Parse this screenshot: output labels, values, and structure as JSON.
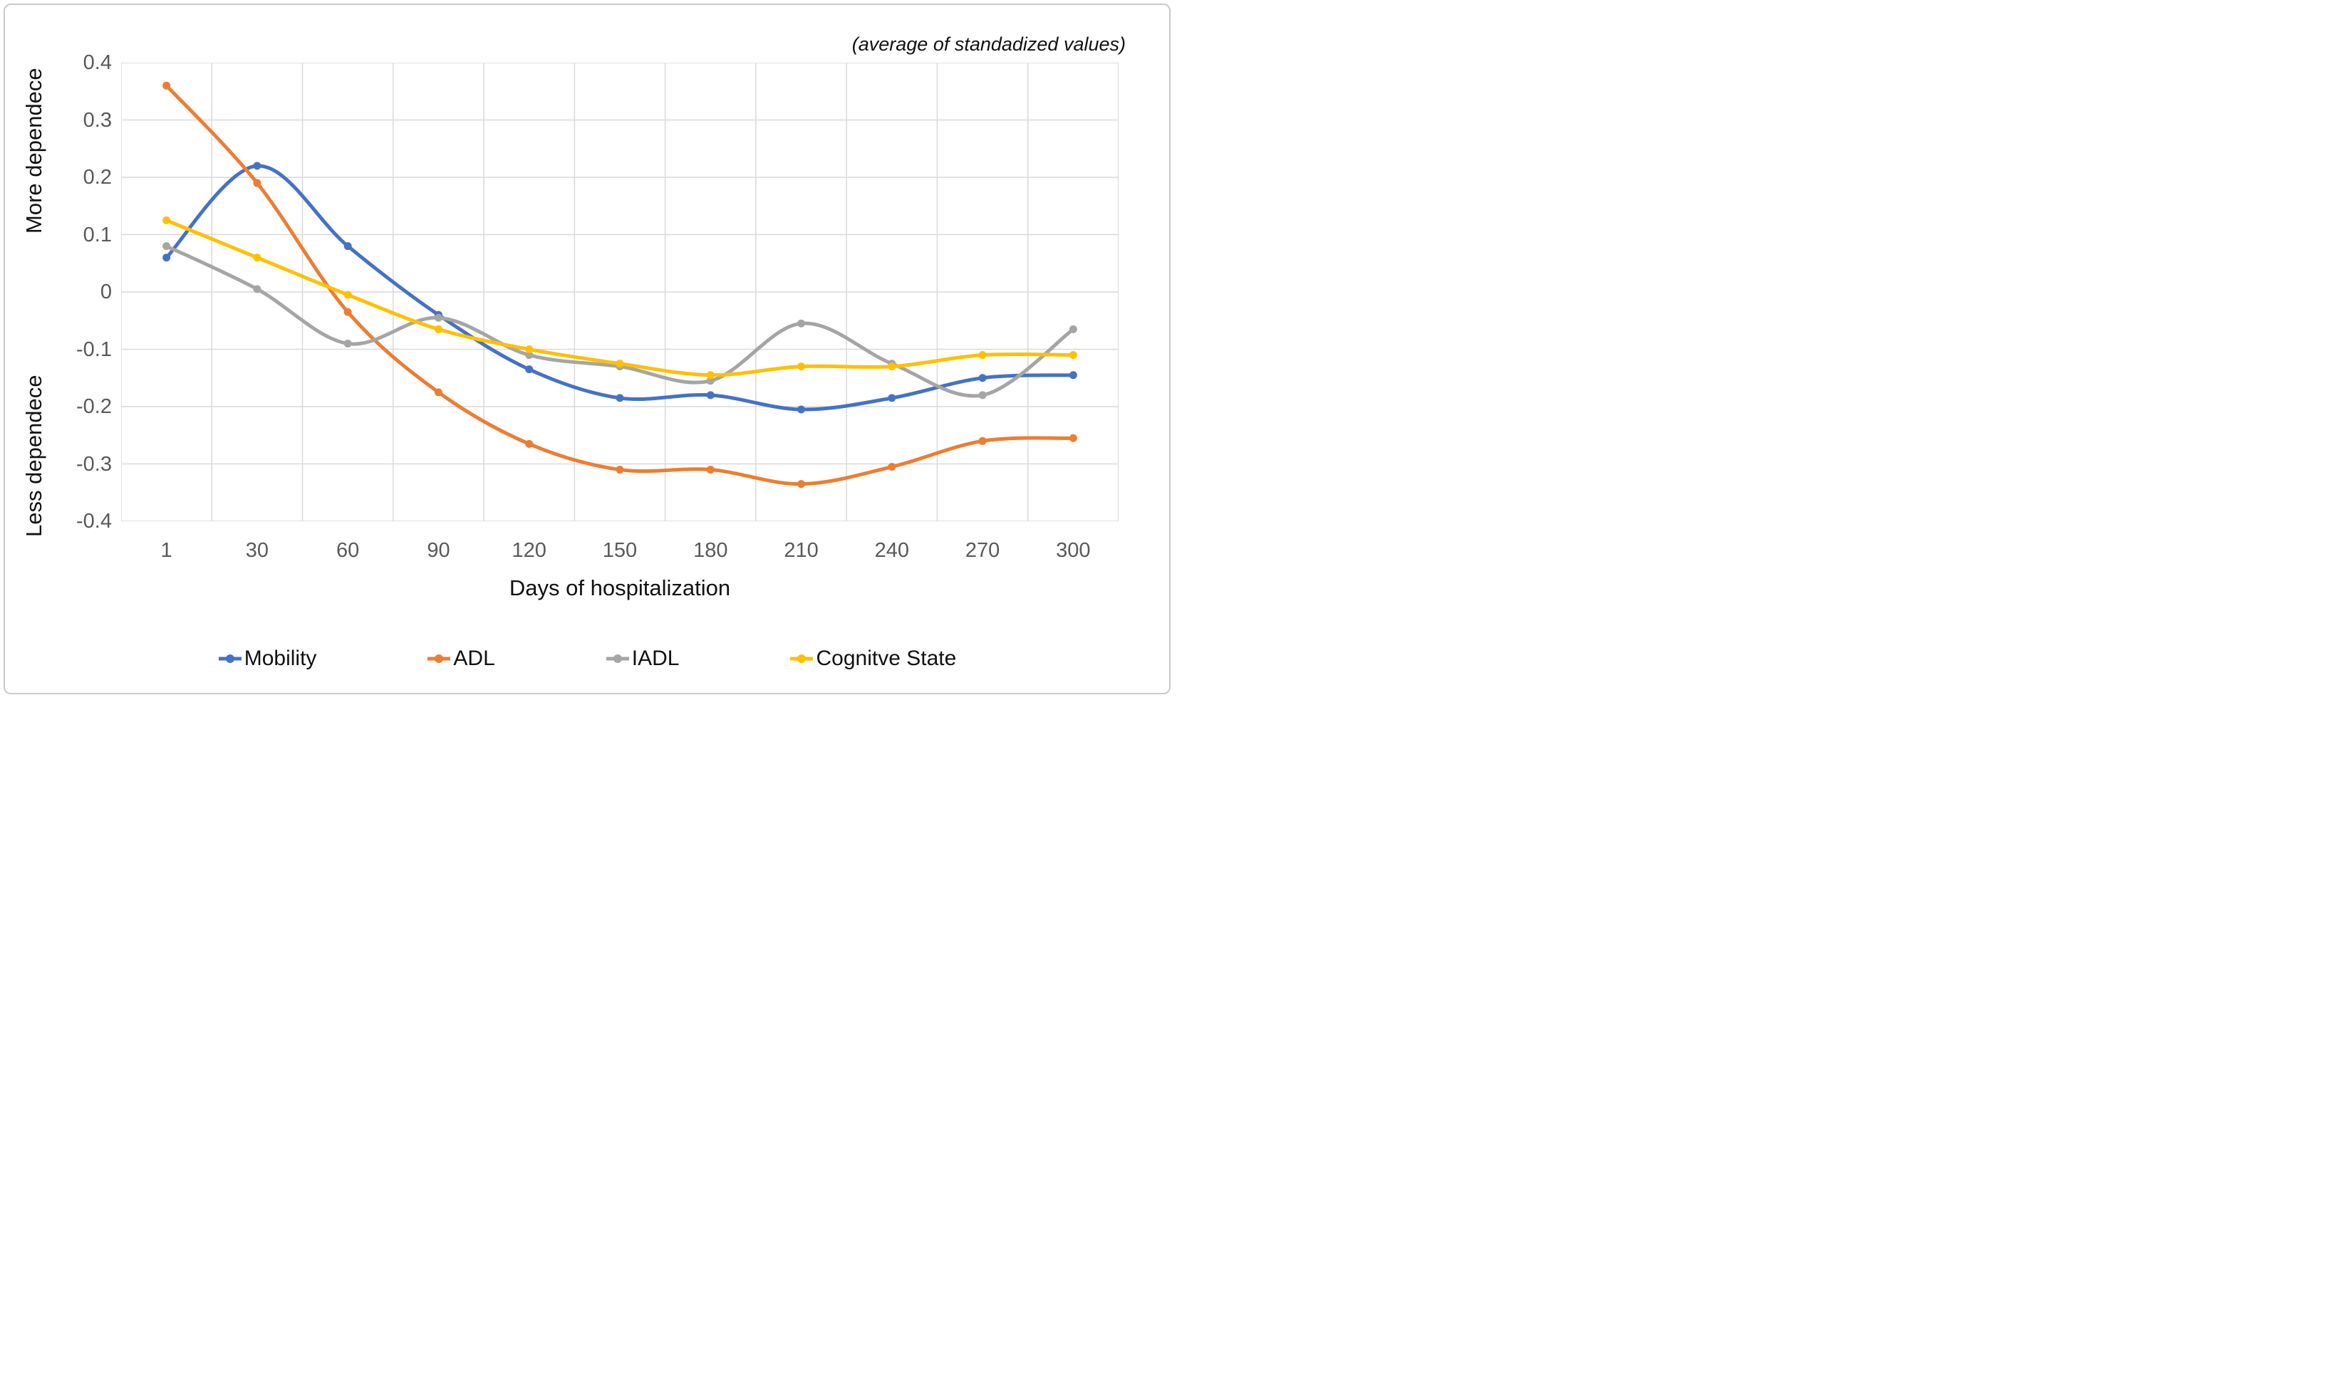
{
  "chart_data": {
    "type": "line",
    "title": "(average of standadized values)",
    "xlabel": "Days of hospitalization",
    "ylabels": {
      "upper": "More dependece",
      "lower": "Less dependece"
    },
    "categories": [
      "1",
      "30",
      "60",
      "90",
      "120",
      "150",
      "180",
      "210",
      "240",
      "270",
      "300"
    ],
    "y_ticks": [
      "0.4",
      "0.3",
      "0.2",
      "0.1",
      "0",
      "-0.1",
      "-0.2",
      "-0.3",
      "-0.4"
    ],
    "ylim": [
      -0.4,
      0.4
    ],
    "y_step": 0.1,
    "grid": true,
    "smooth_lines": true,
    "markers": true,
    "legend_position": "bottom",
    "series": [
      {
        "name": "Mobility",
        "color": "#4472C4",
        "values": [
          0.06,
          0.22,
          0.08,
          -0.04,
          -0.135,
          -0.185,
          -0.18,
          -0.205,
          -0.185,
          -0.15,
          -0.145
        ]
      },
      {
        "name": "ADL",
        "color": "#ED7D31",
        "values": [
          0.36,
          0.19,
          -0.035,
          -0.175,
          -0.265,
          -0.31,
          -0.31,
          -0.335,
          -0.305,
          -0.26,
          -0.255
        ]
      },
      {
        "name": "IADL",
        "color": "#A5A5A5",
        "values": [
          0.08,
          0.005,
          -0.09,
          -0.045,
          -0.11,
          -0.13,
          -0.155,
          -0.055,
          -0.125,
          -0.18,
          -0.065
        ]
      },
      {
        "name": "Cognitve State",
        "color": "#FFC000",
        "values": [
          0.125,
          0.06,
          -0.005,
          -0.065,
          -0.1,
          -0.125,
          -0.145,
          -0.13,
          -0.13,
          -0.11,
          -0.11
        ]
      }
    ]
  },
  "style_colors": {
    "gridline": "#D9D9D9",
    "tick_text": "#595959",
    "text": "#111111",
    "border": "#C9C9C9",
    "background": "#FFFFFF"
  }
}
